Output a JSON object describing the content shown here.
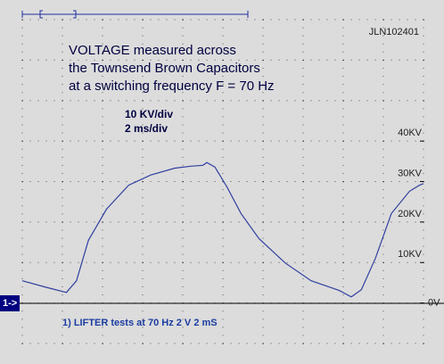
{
  "chart_data": {
    "type": "line",
    "title": [
      "VOLTAGE measured across",
      "the Townsend Brown Capacitors",
      "at a switching frequency F = 70 Hz"
    ],
    "scale_labels": [
      "10 KV/div",
      "2 ms/div"
    ],
    "id_label": "JLN102401",
    "channel_marker": "1->",
    "footer": "1)  LIFTER tests at 70 Hz 2  V 2 mS",
    "xlim": [
      0,
      20
    ],
    "ylim": [
      -10,
      70
    ],
    "yticks": [
      {
        "value": 0,
        "label": "0V"
      },
      {
        "value": 10,
        "label": "10KV"
      },
      {
        "value": 20,
        "label": "20KV"
      },
      {
        "value": 30,
        "label": "30KV"
      },
      {
        "value": 40,
        "label": "40KV"
      }
    ],
    "series": [
      {
        "name": "1",
        "color": "#3040a0",
        "x": [
          0,
          1.1,
          2.2,
          2.7,
          3.3,
          4.2,
          5.3,
          6.4,
          7.6,
          8.4,
          9.0,
          9.2,
          9.6,
          10.2,
          10.9,
          11.8,
          13.1,
          14.4,
          15.8,
          16.4,
          16.9,
          17.6,
          18.4,
          19.3,
          19.8,
          20
        ],
        "values": [
          5.5,
          4.0,
          2.6,
          5.5,
          15.5,
          23.2,
          29.1,
          31.6,
          33.3,
          33.8,
          34.0,
          34.7,
          33.6,
          28.7,
          22.1,
          15.9,
          9.9,
          5.5,
          3.1,
          1.5,
          3.3,
          11.0,
          22.1,
          27.6,
          29.1,
          29.5
        ]
      }
    ]
  }
}
